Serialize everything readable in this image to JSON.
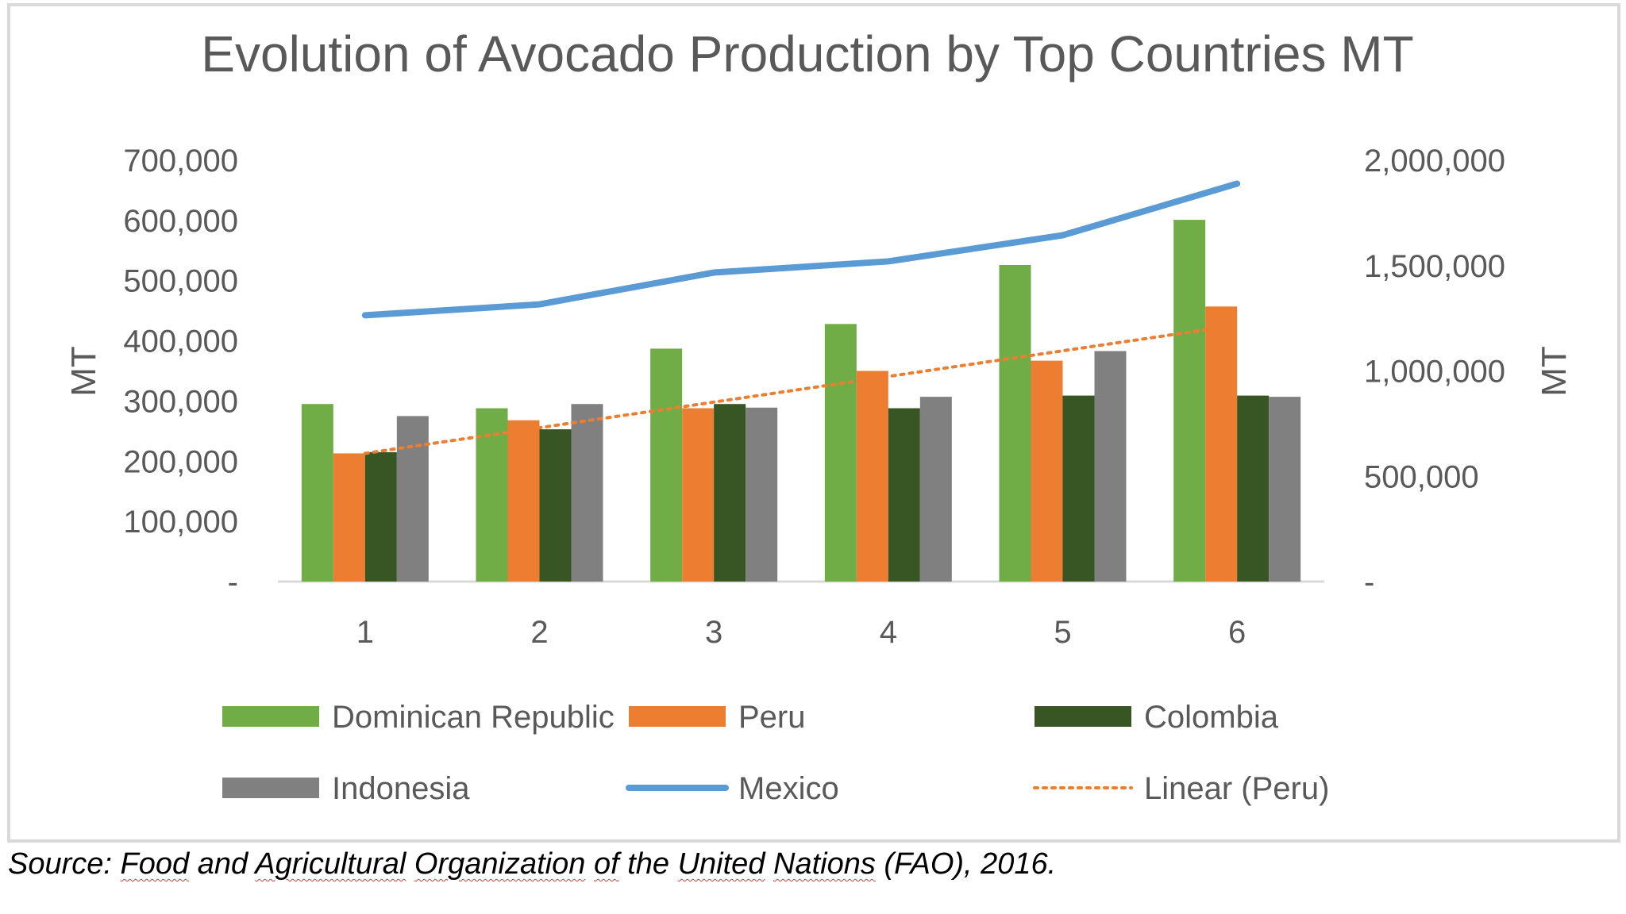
{
  "chart_data": {
    "type": "bar",
    "title": "Evolution of Avocado Production by Top Countries  MT",
    "categories": [
      "1",
      "2",
      "3",
      "4",
      "5",
      "6"
    ],
    "ylabel": "MT",
    "ylabel_right": "MT",
    "ylim": [
      0,
      700000
    ],
    "ylim_right": [
      0,
      2000000
    ],
    "yticks": [
      "-",
      "100,000",
      "200,000",
      "300,000",
      "400,000",
      "500,000",
      "600,000",
      "700,000"
    ],
    "yticks_right": [
      "-",
      "500,000",
      "1,000,000",
      "1,500,000",
      "2,000,000"
    ],
    "bar_series": [
      {
        "name": "Dominican Republic",
        "color": "#70ad47",
        "values": [
          295000,
          288000,
          387000,
          428000,
          526000,
          601000
        ]
      },
      {
        "name": "Peru",
        "color": "#ed7d31",
        "values": [
          213000,
          268000,
          288000,
          350000,
          367000,
          457000
        ]
      },
      {
        "name": "Colombia",
        "color": "#375623",
        "values": [
          215000,
          253000,
          295000,
          288000,
          309000,
          309000
        ]
      },
      {
        "name": "Indonesia",
        "color": "#808080",
        "values": [
          275000,
          295000,
          289000,
          307000,
          383000,
          307000
        ]
      }
    ],
    "line_series": {
      "name": "Mexico",
      "axis": "right",
      "color": "#5b9bd5",
      "values": [
        1264000,
        1316000,
        1467000,
        1520000,
        1644000,
        1889000
      ]
    },
    "trendline": {
      "name": "Linear (Peru)",
      "color": "#ed7d31",
      "style": "dotted",
      "start": 213000,
      "end": 426000
    },
    "legend": {
      "placement": "bottom",
      "entries": [
        {
          "label": "Dominican Republic",
          "kind": "bar",
          "color": "#70ad47"
        },
        {
          "label": "Peru",
          "kind": "bar",
          "color": "#ed7d31"
        },
        {
          "label": "Colombia",
          "kind": "bar",
          "color": "#375623"
        },
        {
          "label": "Indonesia",
          "kind": "bar",
          "color": "#808080"
        },
        {
          "label": "Mexico",
          "kind": "line",
          "color": "#5b9bd5"
        },
        {
          "label": "Linear (Peru)",
          "kind": "dotted",
          "color": "#ed7d31"
        }
      ]
    }
  },
  "source": {
    "prefix": "Source: ",
    "words": [
      "Food",
      "and",
      "Agricultural",
      "Organization",
      "of",
      "the",
      "United",
      "Nations",
      "(FAO), 2016."
    ],
    "squiggle": [
      true,
      false,
      true,
      true,
      true,
      false,
      true,
      true,
      false
    ]
  }
}
